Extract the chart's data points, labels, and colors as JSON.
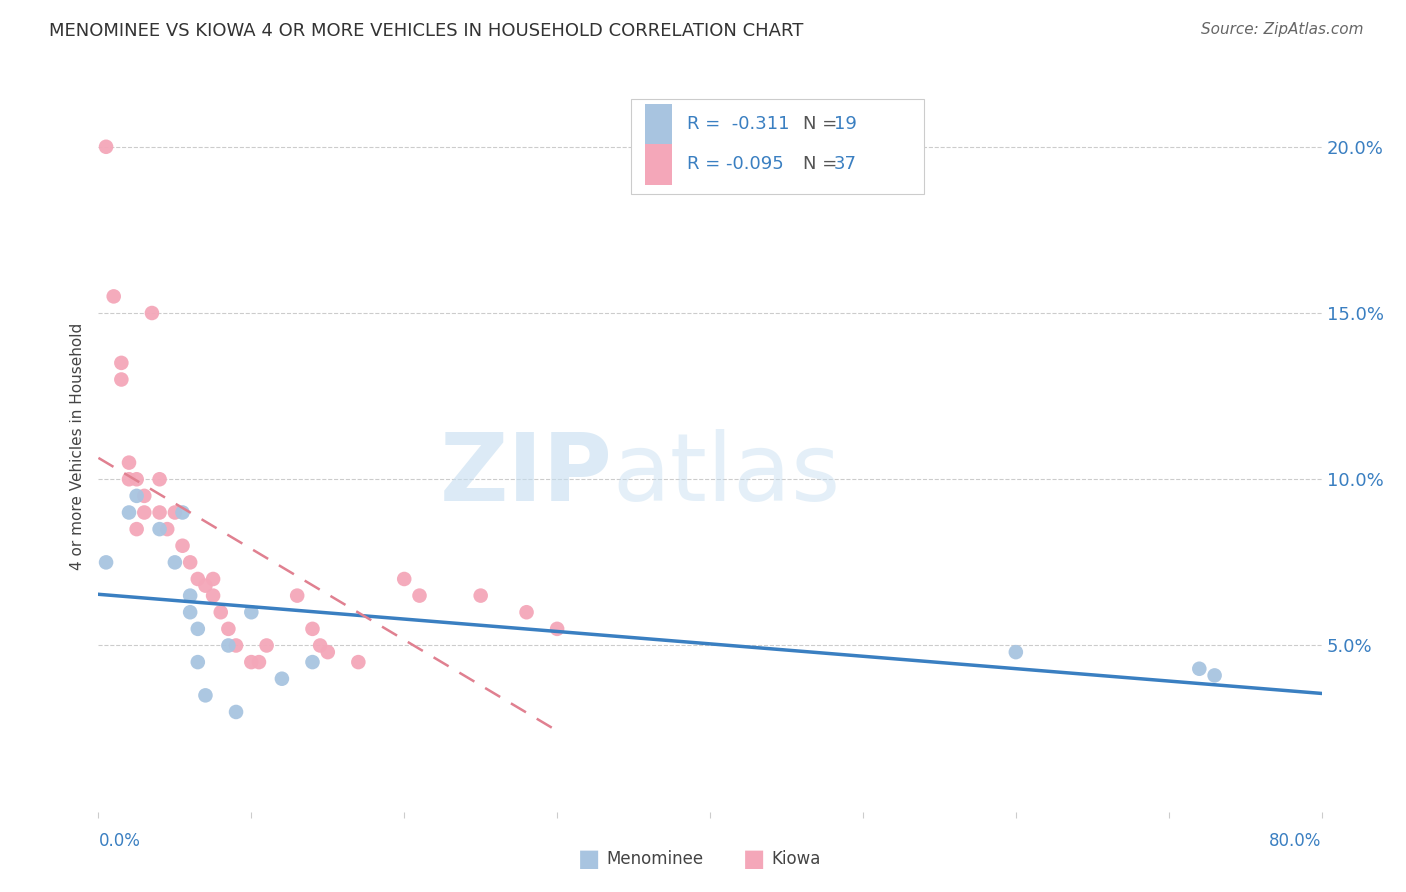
{
  "title": "MENOMINEE VS KIOWA 4 OR MORE VEHICLES IN HOUSEHOLD CORRELATION CHART",
  "source": "Source: ZipAtlas.com",
  "ylabel": "4 or more Vehicles in Household",
  "xmin": 0.0,
  "xmax": 0.8,
  "ymin": 0.0,
  "ymax": 0.22,
  "yticks": [
    0.05,
    0.1,
    0.15,
    0.2
  ],
  "ytick_labels": [
    "5.0%",
    "10.0%",
    "15.0%",
    "20.0%"
  ],
  "menominee_color": "#a8c4e0",
  "kiowa_color": "#f4a7b9",
  "trendline_menominee_color": "#3a7fc1",
  "trendline_kiowa_color": "#e08090",
  "watermark_zip": "ZIP",
  "watermark_atlas": "atlas",
  "menominee_x": [
    0.005,
    0.02,
    0.025,
    0.04,
    0.05,
    0.055,
    0.06,
    0.06,
    0.065,
    0.065,
    0.07,
    0.085,
    0.09,
    0.1,
    0.12,
    0.14,
    0.6,
    0.72,
    0.73
  ],
  "menominee_y": [
    0.075,
    0.09,
    0.095,
    0.085,
    0.075,
    0.09,
    0.065,
    0.06,
    0.055,
    0.045,
    0.035,
    0.05,
    0.03,
    0.06,
    0.04,
    0.045,
    0.048,
    0.043,
    0.041
  ],
  "kiowa_x": [
    0.005,
    0.01,
    0.015,
    0.015,
    0.02,
    0.02,
    0.025,
    0.025,
    0.03,
    0.03,
    0.035,
    0.04,
    0.04,
    0.045,
    0.05,
    0.055,
    0.06,
    0.065,
    0.07,
    0.075,
    0.075,
    0.08,
    0.085,
    0.09,
    0.1,
    0.105,
    0.11,
    0.13,
    0.14,
    0.145,
    0.15,
    0.17,
    0.2,
    0.21,
    0.25,
    0.28,
    0.3
  ],
  "kiowa_y": [
    0.2,
    0.155,
    0.135,
    0.13,
    0.105,
    0.1,
    0.1,
    0.085,
    0.095,
    0.09,
    0.15,
    0.1,
    0.09,
    0.085,
    0.09,
    0.08,
    0.075,
    0.07,
    0.068,
    0.07,
    0.065,
    0.06,
    0.055,
    0.05,
    0.045,
    0.045,
    0.05,
    0.065,
    0.055,
    0.05,
    0.048,
    0.045,
    0.07,
    0.065,
    0.065,
    0.06,
    0.055
  ],
  "menominee_R": "-0.311",
  "menominee_N": "19",
  "kiowa_R": "-0.095",
  "kiowa_N": "37",
  "trendline_men_x0": 0.0,
  "trendline_men_x1": 0.8,
  "trendline_kio_x0": 0.0,
  "trendline_kio_x1": 0.3
}
